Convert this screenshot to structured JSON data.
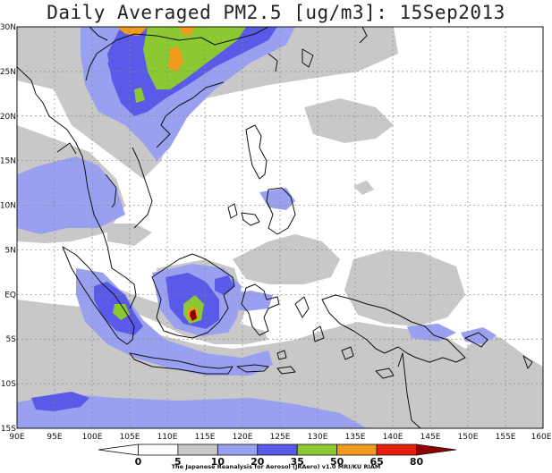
{
  "title": "Daily Averaged PM2.5 [ug/m3]: 15Sep2013",
  "map": {
    "lon_range": [
      90,
      160
    ],
    "lat_range": [
      -15,
      30
    ],
    "lon_labels": [
      "90E",
      "95E",
      "100E",
      "105E",
      "110E",
      "115E",
      "120E",
      "125E",
      "130E",
      "135E",
      "140E",
      "145E",
      "150E",
      "155E",
      "160E"
    ],
    "lat_labels": [
      "30N",
      "25N",
      "20N",
      "15N",
      "10N",
      "5N",
      "EQ",
      "5S",
      "10S",
      "15S"
    ],
    "grid": "dotted"
  },
  "colorbar": {
    "levels": [
      "0",
      "5",
      "10",
      "20",
      "35",
      "50",
      "65",
      "80"
    ],
    "colors": [
      "#ffffff",
      "#ffffff",
      "#c8c8c8",
      "#9aa0f0",
      "#5a5ae8",
      "#8cc832",
      "#f09a1e",
      "#e61e0a",
      "#8c0000"
    ]
  },
  "credit": "The Japanese Reanalysis for Aerosol (JRAero) v1.0 MRI/KU RIAM"
}
